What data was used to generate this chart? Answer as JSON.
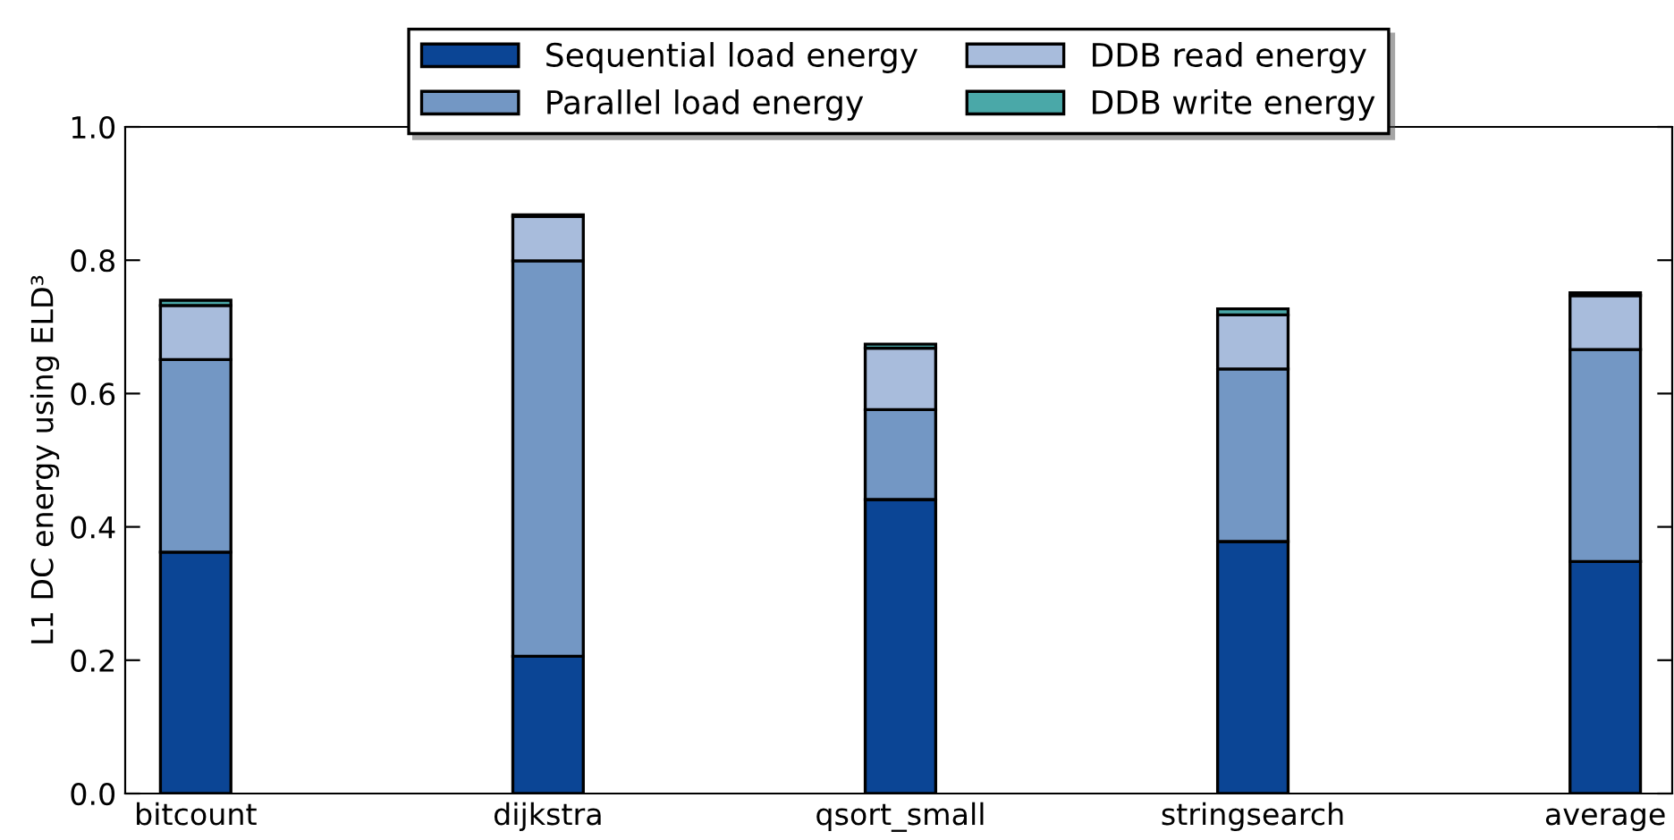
{
  "chart_data": {
    "type": "bar",
    "stacked": true,
    "ylabel": "L1 DC energy using ELD³",
    "categories": [
      "bitcount",
      "dijkstra",
      "qsort_small",
      "stringsearch",
      "average"
    ],
    "series": [
      {
        "name": "Sequential load energy",
        "color": "#0b4595",
        "values": [
          0.362,
          0.206,
          0.441,
          0.378,
          0.348
        ]
      },
      {
        "name": "Parallel load energy",
        "color": "#7397c4",
        "values": [
          0.289,
          0.593,
          0.135,
          0.259,
          0.318
        ]
      },
      {
        "name": "DDB read energy",
        "color": "#a8bcdc",
        "values": [
          0.081,
          0.067,
          0.092,
          0.081,
          0.081
        ]
      },
      {
        "name": "DDB write energy",
        "color": "#4aa8a8",
        "values": [
          0.008,
          0.002,
          0.006,
          0.009,
          0.004
        ]
      }
    ],
    "ylim": [
      0,
      1.0
    ],
    "yticks": [
      {
        "value": 0,
        "label": "0.0"
      },
      {
        "value": 0.2,
        "label": "0.2"
      },
      {
        "value": 0.4,
        "label": "0.4"
      },
      {
        "value": 0.6,
        "label": "0.6"
      },
      {
        "value": 0.8,
        "label": "0.8"
      },
      {
        "value": 1.0,
        "label": "1.0"
      }
    ],
    "grid": false,
    "legend": "top"
  }
}
